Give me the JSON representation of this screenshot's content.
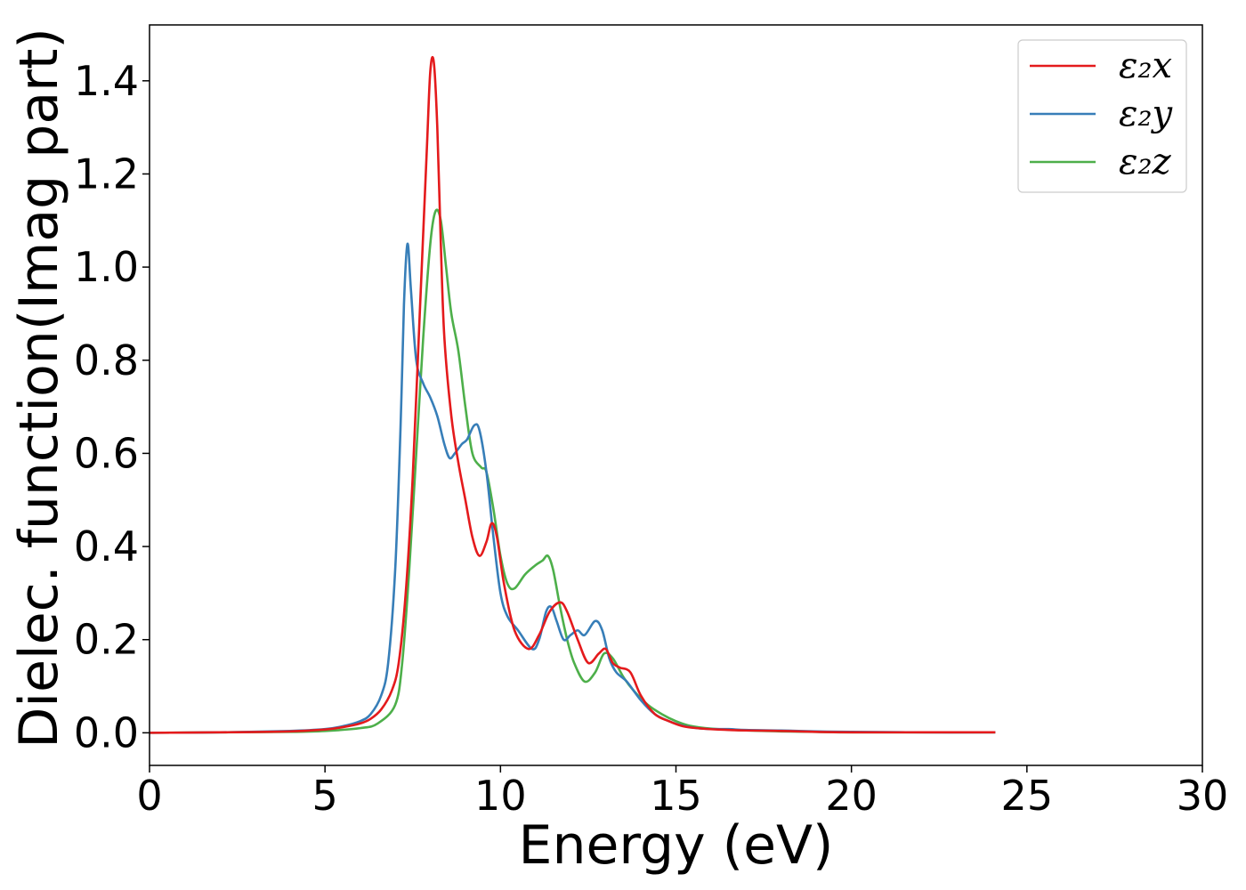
{
  "chart_data": {
    "type": "line",
    "title": "",
    "xlabel": "Energy (eV)",
    "ylabel": "Dielec. function(Imag part)",
    "xlim": [
      0,
      30
    ],
    "ylim": [
      -0.07,
      1.52
    ],
    "xticks": [
      "0",
      "5",
      "10",
      "15",
      "20",
      "25",
      "30"
    ],
    "yticks": [
      "0.0",
      "0.2",
      "0.4",
      "0.6",
      "0.8",
      "1.0",
      "1.2",
      "1.4"
    ],
    "grid": false,
    "legend_position": "top-right",
    "series": [
      {
        "name": "ε₂x",
        "color": "#e41a1c",
        "x": [
          0,
          2,
          4,
          5,
          5.5,
          6,
          6.3,
          6.6,
          6.9,
          7.1,
          7.3,
          7.5,
          7.7,
          7.9,
          8.0,
          8.1,
          8.2,
          8.3,
          8.4,
          8.6,
          8.8,
          9.0,
          9.2,
          9.4,
          9.6,
          9.75,
          9.9,
          10.1,
          10.4,
          10.8,
          11.1,
          11.4,
          11.7,
          11.9,
          12.2,
          12.5,
          12.8,
          13.0,
          13.2,
          13.4,
          13.7,
          14.0,
          14.4,
          14.8,
          15.2,
          15.6,
          16.2,
          17,
          18,
          19,
          20,
          22,
          24.1
        ],
        "y": [
          0,
          0.001,
          0.003,
          0.007,
          0.012,
          0.02,
          0.03,
          0.05,
          0.09,
          0.15,
          0.3,
          0.55,
          0.9,
          1.25,
          1.42,
          1.44,
          1.3,
          1.05,
          0.85,
          0.68,
          0.58,
          0.5,
          0.42,
          0.38,
          0.41,
          0.45,
          0.42,
          0.32,
          0.22,
          0.18,
          0.21,
          0.26,
          0.28,
          0.26,
          0.2,
          0.15,
          0.17,
          0.18,
          0.15,
          0.14,
          0.13,
          0.08,
          0.04,
          0.025,
          0.014,
          0.01,
          0.007,
          0.005,
          0.004,
          0.002,
          0.001,
          0.001,
          0.001
        ]
      },
      {
        "name": "ε₂y",
        "color": "#377eb8",
        "x": [
          0,
          2,
          4,
          5,
          5.5,
          6,
          6.3,
          6.6,
          6.8,
          7.0,
          7.15,
          7.25,
          7.35,
          7.45,
          7.6,
          7.8,
          8.0,
          8.2,
          8.4,
          8.55,
          8.7,
          8.9,
          9.05,
          9.25,
          9.4,
          9.6,
          9.8,
          10.0,
          10.2,
          10.5,
          10.9,
          11.1,
          11.3,
          11.45,
          11.6,
          11.8,
          12.0,
          12.2,
          12.4,
          12.7,
          12.9,
          13.1,
          13.3,
          13.6,
          14.0,
          14.4,
          14.8,
          15.2,
          15.6,
          16.0,
          16.5,
          17,
          18,
          19,
          20,
          22,
          24.1
        ],
        "y": [
          0,
          0.001,
          0.004,
          0.008,
          0.014,
          0.025,
          0.04,
          0.08,
          0.15,
          0.35,
          0.65,
          0.92,
          1.05,
          0.95,
          0.8,
          0.75,
          0.72,
          0.68,
          0.62,
          0.59,
          0.6,
          0.62,
          0.63,
          0.66,
          0.65,
          0.56,
          0.42,
          0.3,
          0.25,
          0.22,
          0.18,
          0.2,
          0.26,
          0.27,
          0.24,
          0.2,
          0.21,
          0.22,
          0.21,
          0.24,
          0.22,
          0.16,
          0.13,
          0.11,
          0.07,
          0.04,
          0.025,
          0.015,
          0.01,
          0.008,
          0.008,
          0.006,
          0.005,
          0.003,
          0.002,
          0.001,
          0.001
        ]
      },
      {
        "name": "ε₂z",
        "color": "#4daf4a",
        "x": [
          0,
          2,
          4,
          5,
          6,
          6.5,
          7.0,
          7.2,
          7.4,
          7.6,
          7.8,
          8.0,
          8.15,
          8.3,
          8.45,
          8.6,
          8.8,
          9.0,
          9.2,
          9.45,
          9.6,
          9.8,
          10.0,
          10.2,
          10.4,
          10.7,
          11.0,
          11.2,
          11.35,
          11.5,
          11.7,
          11.9,
          12.1,
          12.4,
          12.7,
          12.95,
          13.2,
          13.5,
          13.8,
          14.2,
          14.6,
          15.0,
          15.4,
          16.0,
          17,
          18,
          19,
          20,
          22,
          24.1
        ],
        "y": [
          0,
          0.001,
          0.002,
          0.004,
          0.01,
          0.02,
          0.06,
          0.15,
          0.35,
          0.6,
          0.85,
          1.05,
          1.12,
          1.1,
          1.0,
          0.9,
          0.82,
          0.7,
          0.6,
          0.57,
          0.56,
          0.48,
          0.38,
          0.32,
          0.31,
          0.34,
          0.36,
          0.37,
          0.38,
          0.35,
          0.27,
          0.2,
          0.15,
          0.11,
          0.13,
          0.17,
          0.16,
          0.12,
          0.09,
          0.06,
          0.04,
          0.025,
          0.015,
          0.009,
          0.005,
          0.003,
          0.002,
          0.001,
          0.001,
          0.001
        ]
      }
    ]
  }
}
